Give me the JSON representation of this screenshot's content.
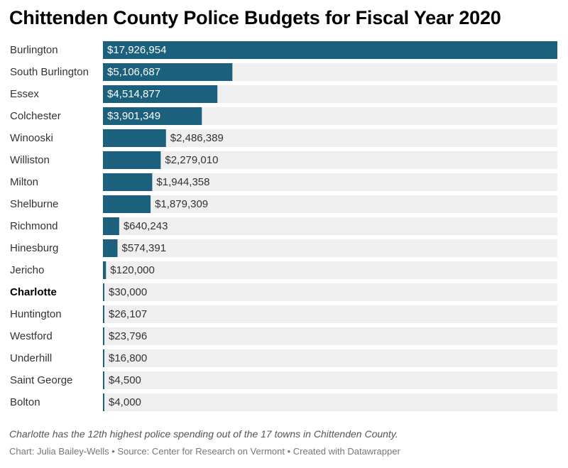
{
  "title": "Chittenden County Police Budgets for Fiscal Year 2020",
  "note": "Charlotte has the 12th highest police spending out of the 17 towns in Chittenden County.",
  "credits": "Chart: Julia Bailey-Wells • Source: Center for Research on Vermont • Created with Datawrapper",
  "colors": {
    "bar": "#1b607c",
    "track": "#efefef",
    "label_on_bar": "#ffffff",
    "label_off_bar": "#333333"
  },
  "chart_data": {
    "type": "bar",
    "orientation": "horizontal",
    "categories": [
      "Burlington",
      "South Burlington",
      "Essex",
      "Colchester",
      "Winooski",
      "Williston",
      "Milton",
      "Shelburne",
      "Richmond",
      "Hinesburg",
      "Jericho",
      "Charlotte",
      "Huntington",
      "Westford",
      "Underhill",
      "Saint George",
      "Bolton"
    ],
    "values": [
      17926954,
      5106687,
      4514877,
      3901349,
      2486389,
      2279010,
      1944358,
      1879309,
      640243,
      574391,
      120000,
      30000,
      26107,
      23796,
      16800,
      4500,
      4000
    ],
    "value_labels": [
      "$17,926,954",
      "$5,106,687",
      "$4,514,877",
      "$3,901,349",
      "$2,486,389",
      "$2,279,010",
      "$1,944,358",
      "$1,879,309",
      "$640,243",
      "$574,391",
      "$120,000",
      "$30,000",
      "$26,107",
      "$23,796",
      "$16,800",
      "$4,500",
      "$4,000"
    ],
    "highlight": "Charlotte",
    "xlim": [
      0,
      17926954
    ],
    "grid": false
  }
}
